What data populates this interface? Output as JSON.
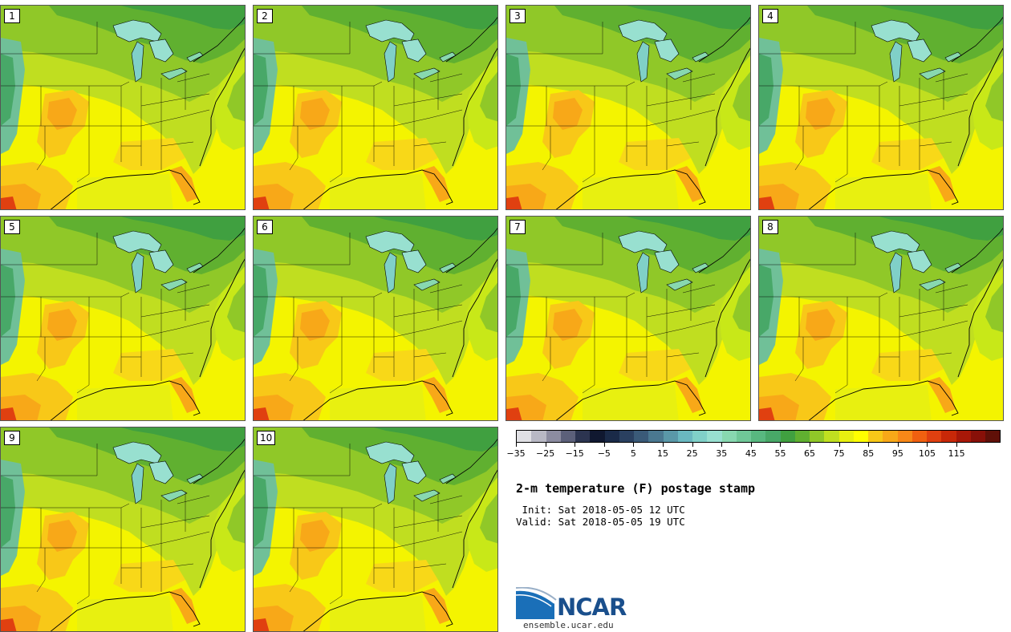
{
  "panels": [
    "1",
    "2",
    "3",
    "4",
    "5",
    "6",
    "7",
    "8",
    "9",
    "10"
  ],
  "colorbar": {
    "colors": [
      "#e0e0e4",
      "#b8b8c4",
      "#8c8ca0",
      "#5c607a",
      "#2c3450",
      "#101830",
      "#1a2a48",
      "#2a4060",
      "#3a5a78",
      "#4a7890",
      "#5a98a8",
      "#6ab8c0",
      "#80d0c8",
      "#98e0d0",
      "#88d8b0",
      "#70c898",
      "#58b880",
      "#48a868",
      "#40a040",
      "#60b030",
      "#90c828",
      "#c0e020",
      "#e8f010",
      "#ffff00",
      "#f8c818",
      "#f8a818",
      "#f88818",
      "#f06010",
      "#e04010",
      "#c82808",
      "#a81808",
      "#881008",
      "#601008"
    ],
    "ticks": [
      "−35",
      "−25",
      "−15",
      "−5",
      "5",
      "15",
      "25",
      "35",
      "45",
      "55",
      "65",
      "75",
      "85",
      "95",
      "105",
      "115"
    ]
  },
  "title": "2-m temperature (F) postage stamp",
  "init": " Init: Sat 2018-05-05 12 UTC",
  "valid": "Valid: Sat 2018-05-05 19 UTC",
  "logo": {
    "text": "NCAR",
    "url": "ensemble.ucar.edu"
  }
}
